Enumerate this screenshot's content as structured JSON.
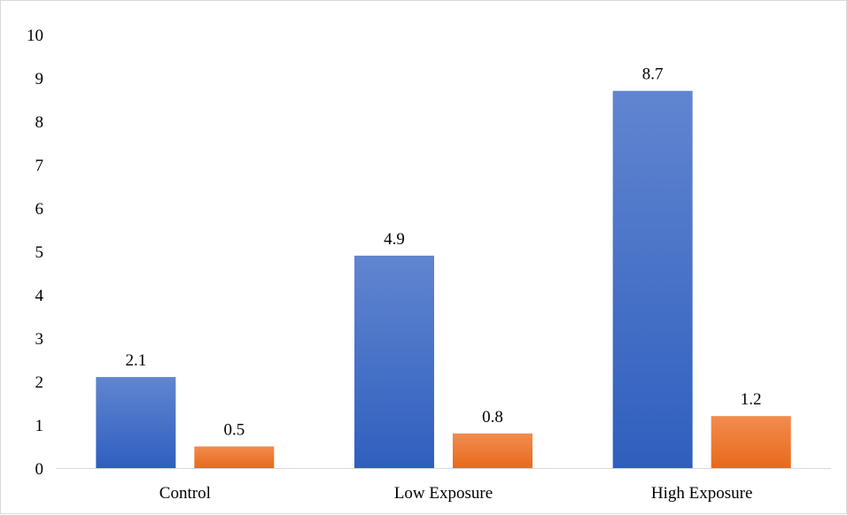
{
  "chart_data": {
    "type": "bar",
    "title": "",
    "xlabel": "",
    "ylabel": "",
    "categories": [
      "Control",
      "Low Exposure",
      "High Exposure"
    ],
    "series": [
      {
        "values": [
          2.1,
          4.9,
          8.7
        ],
        "color": "#4472c4"
      },
      {
        "values": [
          0.5,
          0.8,
          1.2
        ],
        "color": "#ed7d31"
      }
    ],
    "ylim": [
      0,
      10
    ],
    "yticks": [
      0,
      1,
      2,
      3,
      4,
      5,
      6,
      7,
      8,
      9,
      10
    ],
    "grid": false,
    "legend": "none",
    "data_labels": true
  }
}
